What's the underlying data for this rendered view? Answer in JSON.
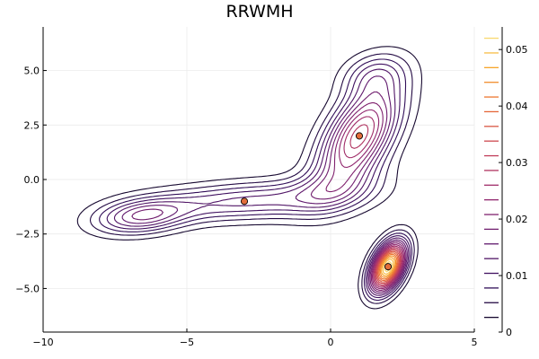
{
  "chart_data": {
    "type": "contour",
    "title": "RRWMH",
    "xlabel": "",
    "ylabel": "",
    "xlim": [
      -10,
      5
    ],
    "ylim": [
      -7,
      7
    ],
    "x_ticks": [
      -10,
      -5,
      0,
      5
    ],
    "x_tick_labels": [
      "−10",
      "−5",
      "0",
      "5"
    ],
    "y_ticks": [
      -5,
      -2.5,
      0,
      2.5,
      5
    ],
    "y_tick_labels": [
      "−5.0",
      "−2.5",
      "0.0",
      "2.5",
      "5.0"
    ],
    "grid": true,
    "colorbar": {
      "range": [
        0,
        0.054
      ],
      "ticks": [
        0,
        0.01,
        0.02,
        0.03,
        0.04,
        0.05
      ],
      "tick_labels": [
        "0",
        "0.01",
        "0.02",
        "0.03",
        "0.04",
        "0.05"
      ],
      "levels": [
        0.0026,
        0.0052,
        0.0078,
        0.0104,
        0.013,
        0.0156,
        0.0182,
        0.0208,
        0.0234,
        0.026,
        0.0286,
        0.0312,
        0.0338,
        0.0364,
        0.039,
        0.0416,
        0.0442,
        0.0468,
        0.0494,
        0.052
      ],
      "colormap": "inferno-like"
    },
    "modes": [
      {
        "x": -3,
        "y": -1
      },
      {
        "x": 1,
        "y": 2
      },
      {
        "x": 2,
        "y": -4
      }
    ],
    "marker_color": "#e26d3a"
  }
}
